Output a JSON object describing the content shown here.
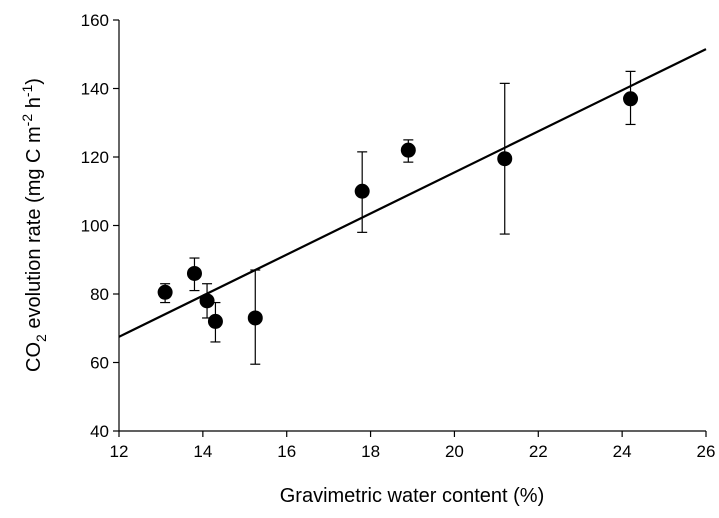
{
  "chart_data": {
    "type": "scatter",
    "title": "",
    "xlabel": "Gravimetric water content (%)",
    "ylabel": {
      "prefix": "CO",
      "sub": "2",
      "mid": " evolution rate (mg C m",
      "sup1": "-2",
      "mid2": " h",
      "sup2": "-1",
      "suffix": ")"
    },
    "xlim": [
      12,
      26
    ],
    "ylim": [
      40,
      160
    ],
    "xticks": [
      12,
      14,
      16,
      18,
      20,
      22,
      24,
      26
    ],
    "yticks": [
      40,
      60,
      80,
      100,
      120,
      140,
      160
    ],
    "grid": false,
    "legend": "none",
    "points": [
      {
        "x": 13.1,
        "y": 80.5,
        "err_low": 77.5,
        "err_high": 83.0
      },
      {
        "x": 13.8,
        "y": 86.0,
        "err_low": 81.0,
        "err_high": 90.5
      },
      {
        "x": 14.1,
        "y": 78.0,
        "err_low": 73.0,
        "err_high": 83.0
      },
      {
        "x": 14.3,
        "y": 72.0,
        "err_low": 66.0,
        "err_high": 77.5
      },
      {
        "x": 15.25,
        "y": 73.0,
        "err_low": 59.5,
        "err_high": 87.0
      },
      {
        "x": 17.8,
        "y": 110.0,
        "err_low": 98.0,
        "err_high": 121.5
      },
      {
        "x": 18.9,
        "y": 122.0,
        "err_low": 118.5,
        "err_high": 125.0
      },
      {
        "x": 21.2,
        "y": 119.5,
        "err_low": 97.5,
        "err_high": 141.5
      },
      {
        "x": 24.2,
        "y": 137.0,
        "err_low": 129.5,
        "err_high": 145.0
      }
    ],
    "trendline": {
      "x": [
        12,
        26
      ],
      "y": [
        67.5,
        151.5
      ]
    },
    "colors": {
      "marker": "#000000",
      "line": "#000000",
      "axis": "#000000"
    }
  }
}
